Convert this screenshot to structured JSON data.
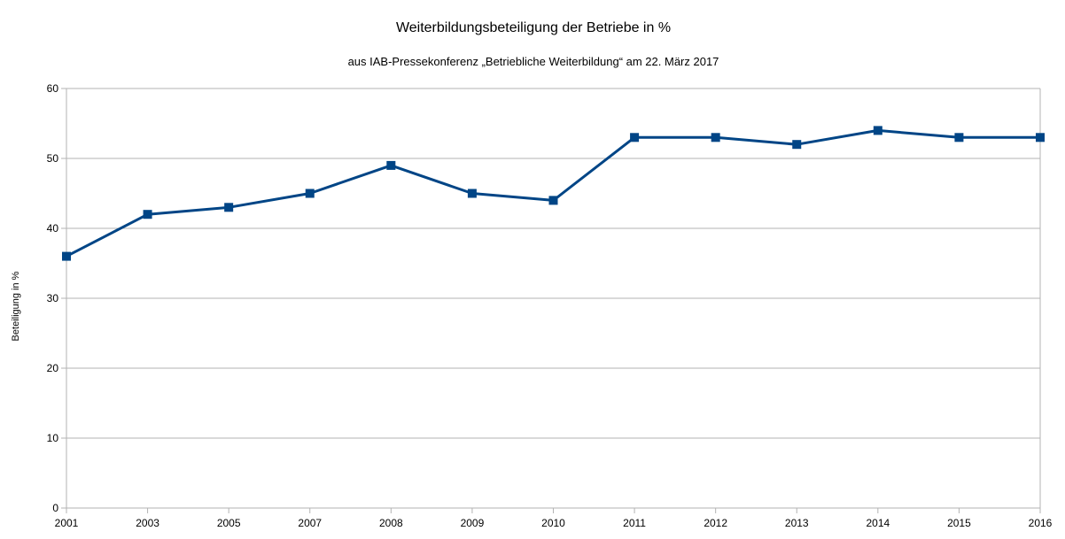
{
  "chart_data": {
    "type": "line",
    "title": "Weiterbildungsbeteiligung der Betriebe in %",
    "subtitle": "aus IAB-Pressekonferenz „Betriebliche Weiterbildung“ am 22. März 2017",
    "xlabel": "",
    "ylabel": "Beteiligung in %",
    "categories": [
      "2001",
      "2003",
      "2005",
      "2007",
      "2008",
      "2009",
      "2010",
      "2011",
      "2012",
      "2013",
      "2014",
      "2015",
      "2016"
    ],
    "series": [
      {
        "values": [
          36,
          42,
          43,
          45,
          49,
          45,
          44,
          53,
          53,
          52,
          54,
          53,
          53
        ],
        "color": "#004586"
      }
    ],
    "ylim": [
      0,
      60
    ],
    "yticks": [
      0,
      10,
      20,
      30,
      40,
      50,
      60
    ],
    "grid": true,
    "legend": "none"
  }
}
